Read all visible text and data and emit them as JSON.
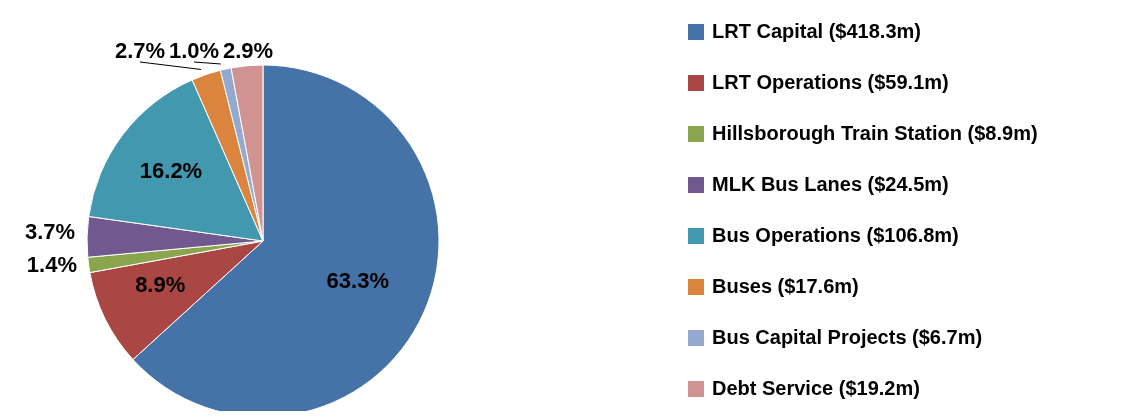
{
  "chart_data": {
    "type": "pie",
    "categories": [
      "LRT Capital ($418.3m)",
      "LRT Operations ($59.1m)",
      "Hillsborough Train Station ($8.9m)",
      "MLK Bus Lanes ($24.5m)",
      "Bus Operations ($106.8m)",
      "Buses ($17.6m)",
      "Bus Capital Projects ($6.7m)",
      "Debt Service ($19.2m)"
    ],
    "values": [
      63.3,
      8.9,
      1.4,
      3.7,
      16.2,
      2.7,
      1.0,
      2.9
    ],
    "value_labels": [
      "63.3%",
      "8.9%",
      "1.4%",
      "3.7%",
      "16.2%",
      "2.7%",
      "1.0%",
      "2.9%"
    ],
    "colors": [
      "#4572a7",
      "#aa4643",
      "#89a54e",
      "#71588f",
      "#4198af",
      "#db843d",
      "#93a9cf",
      "#d19392"
    ],
    "legend": "right"
  }
}
